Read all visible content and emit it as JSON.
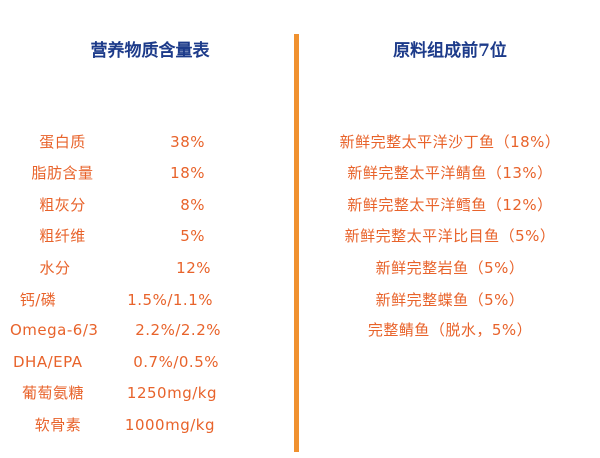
{
  "left": {
    "title": "营养物质含量表",
    "items": [
      {
        "label": "蛋白质",
        "value": "38%"
      },
      {
        "label": "脂肪含量",
        "value": "18%"
      },
      {
        "label": "粗灰分",
        "value": "8%"
      },
      {
        "label": "粗纤维",
        "value": "5%"
      },
      {
        "label": "水分",
        "value": "12%"
      },
      {
        "label": "钙/磷",
        "value": "1.5%/1.1%"
      },
      {
        "label": "Omega-6/3",
        "value": "2.2%/2.2%"
      },
      {
        "label": "DHA/EPA",
        "value": "0.7%/0.5%"
      },
      {
        "label": "葡萄氨糖",
        "value": "1250mg/kg"
      },
      {
        "label": "软骨素",
        "value": "1000mg/kg"
      }
    ]
  },
  "right": {
    "title": "原料组成前7位",
    "items": [
      "新鲜完整太平洋沙丁鱼（18%）",
      "新鲜完整太平洋鲭鱼（13%）",
      "新鲜完整太平洋鳕鱼（12%）",
      "新鲜完整太平洋比目鱼（5%）",
      "新鲜完整岩鱼（5%）",
      "新鲜完整蝶鱼（5%）",
      "完整鲭鱼（脱水，5%）"
    ]
  },
  "colors": {
    "title": "#1d3b8a",
    "text": "#e8632b",
    "divider": "#f0912f"
  }
}
